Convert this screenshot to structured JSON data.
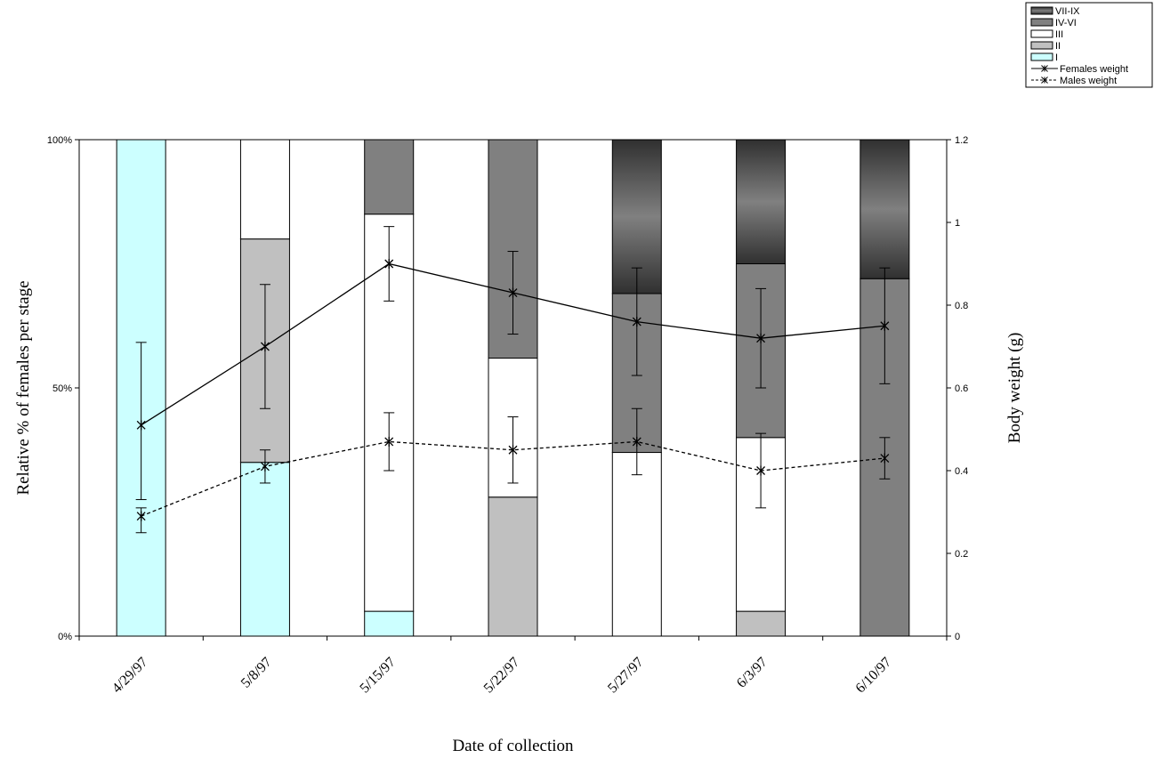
{
  "chart_data": {
    "type": "bar",
    "stacked": true,
    "title": "",
    "xlabel": "Date of collection",
    "ylabel": "Relative % of females per stage",
    "y2label": "Body weight (g)",
    "categories": [
      "4/29/97",
      "5/8/97",
      "5/15/97",
      "5/22/97",
      "5/27/97",
      "6/3/97",
      "6/10/97"
    ],
    "y_ticks": [
      "0%",
      "50%",
      "100%"
    ],
    "ylim": [
      0,
      100
    ],
    "y2_ticks": [
      "0",
      "0.2",
      "0.4",
      "0.6",
      "0.8",
      "1",
      "1.2"
    ],
    "y2lim": [
      0,
      1.2
    ],
    "legend_position": "top-right",
    "series": [
      {
        "name": "I",
        "kind": "bar",
        "color": "#ccffff",
        "values": [
          100,
          35,
          5,
          0,
          0,
          0,
          0
        ]
      },
      {
        "name": "II",
        "kind": "bar",
        "color": "#c0c0c0",
        "values": [
          0,
          45,
          0,
          28,
          0,
          5,
          0
        ]
      },
      {
        "name": "III",
        "kind": "bar",
        "color": "#ffffff",
        "values": [
          0,
          20,
          80,
          28,
          37,
          35,
          0
        ]
      },
      {
        "name": "IV-VI",
        "kind": "bar",
        "color": "#808080",
        "values": [
          0,
          0,
          15,
          44,
          32,
          35,
          72
        ]
      },
      {
        "name": "VII-IX",
        "kind": "bar",
        "color": "#505050",
        "gradient": true,
        "values": [
          0,
          0,
          0,
          0,
          31,
          25,
          28
        ]
      },
      {
        "name": "Females weight",
        "kind": "line",
        "axis": "secondary",
        "style": "solid",
        "values": [
          0.51,
          0.7,
          0.9,
          0.83,
          0.76,
          0.72,
          0.75
        ],
        "error_low": [
          0.33,
          0.55,
          0.81,
          0.73,
          0.63,
          0.6,
          0.61
        ],
        "error_high": [
          0.71,
          0.85,
          0.99,
          0.93,
          0.89,
          0.84,
          0.89
        ]
      },
      {
        "name": "Males weight",
        "kind": "line",
        "axis": "secondary",
        "style": "dashed",
        "values": [
          0.29,
          0.41,
          0.47,
          0.45,
          0.47,
          0.4,
          0.43
        ],
        "error_low": [
          0.25,
          0.37,
          0.4,
          0.37,
          0.39,
          0.31,
          0.38
        ],
        "error_high": [
          0.31,
          0.45,
          0.54,
          0.53,
          0.55,
          0.49,
          0.48
        ]
      }
    ]
  }
}
